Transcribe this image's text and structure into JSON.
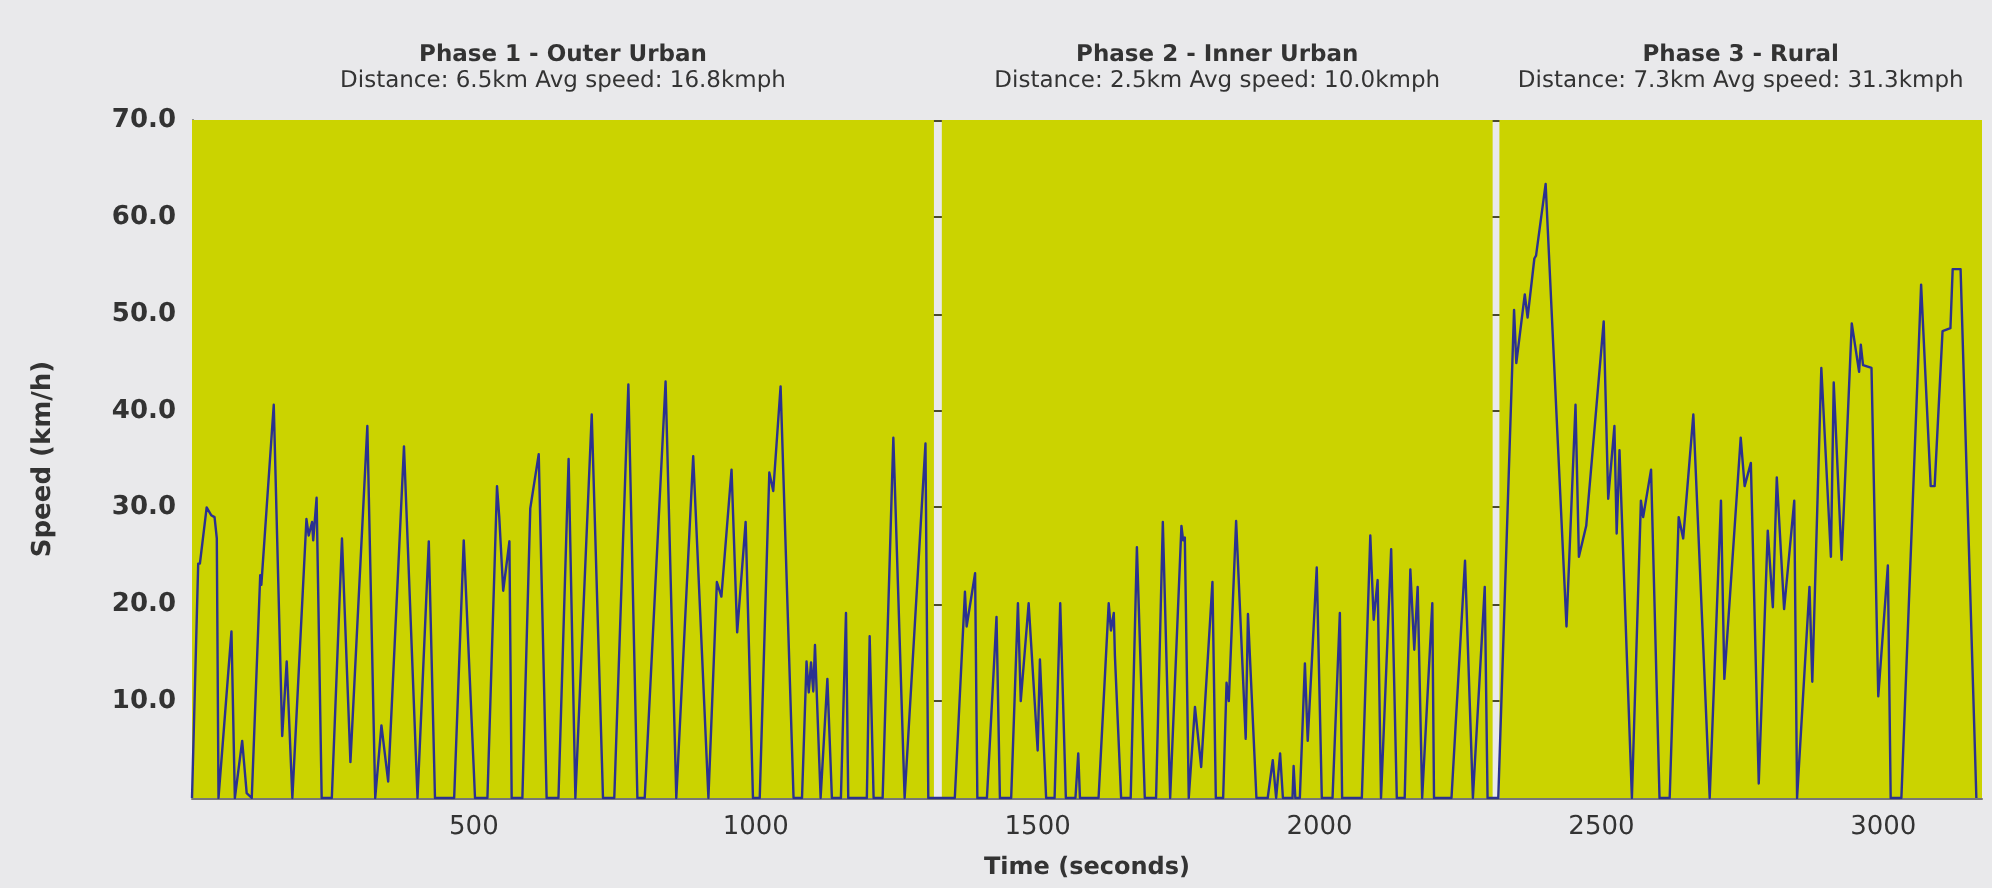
{
  "chart_data": {
    "type": "line",
    "xlabel": "Time (seconds)",
    "ylabel": "Speed (km/h)",
    "xlim": [
      0,
      3175
    ],
    "xticks": [
      500,
      1000,
      1500,
      2000,
      2500,
      3000
    ],
    "ylim": [
      0,
      70
    ],
    "yticks": [
      {
        "value": 10,
        "label": "10.0"
      },
      {
        "value": 20,
        "label": "20.0"
      },
      {
        "value": 30,
        "label": "30.0"
      },
      {
        "value": 40,
        "label": "40.0"
      },
      {
        "value": 50,
        "label": "50.0"
      },
      {
        "value": 60,
        "label": "60.0"
      },
      {
        "value": 70,
        "label": "70.0"
      }
    ],
    "grid": "y",
    "bands": [
      {
        "axis": "x",
        "from": 0,
        "to": 1316,
        "label": "Phase 1 - Outer Urban\nDistance: 6.5km Avg speed: 16.8kmph",
        "color": "#cbd300"
      },
      {
        "axis": "x",
        "from": 1330,
        "to": 2307,
        "label": "Phase 2 - Inner Urban\nDistance: 2.5km Avg speed: 10.0kmph",
        "color": "#cbd300"
      },
      {
        "axis": "x",
        "from": 2319,
        "to": 3175,
        "label": "Phase 3 - Rural\nDistance: 7.3km Avg speed: 31.3kmph",
        "color": "#cbd300"
      }
    ],
    "series": [
      {
        "color": "#2b3190",
        "x": [
          0,
          11,
          14,
          26,
          34,
          40,
          44,
          47,
          70,
          76,
          89,
          97,
          106,
          121,
          123,
          145,
          160,
          168,
          178,
          203,
          207,
          213,
          215,
          221,
          230,
          248,
          266,
          281,
          311,
          325,
          336,
          348,
          376,
          400,
          420,
          431,
          465,
          482,
          502,
          524,
          541,
          545,
          552,
          563,
          567,
          586,
          600,
          615,
          629,
          650,
          668,
          680,
          709,
          729,
          749,
          774,
          790,
          803,
          840,
          859,
          889,
          916,
          931,
          939,
          957,
          967,
          982,
          995,
          1007,
          1024,
          1031,
          1044,
          1067,
          1082,
          1090,
          1094,
          1098,
          1102,
          1105,
          1115,
          1127,
          1135,
          1151,
          1160,
          1164,
          1197,
          1202,
          1209,
          1225,
          1244,
          1264,
          1301,
          1306,
          1353,
          1371,
          1374,
          1389,
          1393,
          1410,
          1427,
          1433,
          1453,
          1465,
          1470,
          1484,
          1500,
          1504,
          1515,
          1530,
          1540,
          1550,
          1567,
          1572,
          1575,
          1608,
          1626,
          1630,
          1635,
          1637,
          1648,
          1665,
          1676,
          1690,
          1710,
          1722,
          1735,
          1755,
          1758,
          1761,
          1768,
          1779,
          1790,
          1810,
          1816,
          1829,
          1835,
          1839,
          1852,
          1869,
          1873,
          1888,
          1908,
          1917,
          1923,
          1930,
          1935,
          1952,
          1954,
          1957,
          1965,
          1974,
          1979,
          1995,
          2004,
          2023,
          2036,
          2040,
          2075,
          2090,
          2096,
          2103,
          2109,
          2127,
          2137,
          2151,
          2161,
          2168,
          2174,
          2182,
          2200,
          2203,
          2234,
          2258,
          2272,
          2293,
          2298,
          2317,
          2345,
          2349,
          2364,
          2369,
          2381,
          2384,
          2401,
          2438,
          2454,
          2460,
          2473,
          2504,
          2512,
          2523,
          2527,
          2532,
          2554,
          2570,
          2574,
          2588,
          2603,
          2621,
          2637,
          2645,
          2663,
          2692,
          2712,
          2718,
          2747,
          2754,
          2765,
          2779,
          2795,
          2804,
          2811,
          2824,
          2842,
          2847,
          2869,
          2874,
          2890,
          2907,
          2912,
          2926,
          2944,
          2957,
          2960,
          2964,
          2979,
          2991,
          3008,
          3013,
          3032,
          3067,
          3084,
          3091,
          3105,
          3119,
          3123,
          3137,
          3165
        ],
        "values": [
          0,
          24.2,
          24.2,
          30,
          29.2,
          29,
          26.8,
          0,
          17.2,
          0,
          5.9,
          0.5,
          0,
          23,
          22,
          40.6,
          6.4,
          14.1,
          0,
          28.8,
          27.1,
          28.5,
          26.6,
          31,
          0,
          0,
          26.8,
          3.7,
          38.4,
          0,
          7.5,
          1.7,
          36.3,
          0,
          26.5,
          0,
          0,
          26.6,
          0,
          0,
          32.2,
          29,
          21.4,
          26.5,
          0,
          0,
          29.9,
          35.5,
          0,
          0,
          35,
          0,
          39.6,
          0,
          0,
          42.7,
          0,
          0,
          43,
          0,
          35.3,
          0,
          22.3,
          20.8,
          33.9,
          17.1,
          28.5,
          0,
          0,
          33.6,
          31.7,
          42.5,
          0,
          0,
          14.1,
          10.9,
          14,
          11,
          15.8,
          0,
          12.3,
          0,
          0,
          19.1,
          0,
          0,
          16.7,
          0,
          0,
          37.2,
          0,
          36.6,
          0,
          0,
          21.3,
          17.7,
          23.2,
          0,
          0,
          18.7,
          0,
          0,
          20.1,
          10,
          20.1,
          4.9,
          14.3,
          0,
          0,
          20.1,
          0,
          0,
          4.6,
          0,
          0,
          20.1,
          17.3,
          19.1,
          14.7,
          0,
          0,
          25.9,
          0,
          0,
          28.5,
          0,
          28.1,
          26.6,
          26.9,
          0,
          9.4,
          3.2,
          22.3,
          0,
          0,
          11.9,
          10,
          28.6,
          6.1,
          19,
          0,
          0,
          3.9,
          0,
          4.6,
          0,
          0,
          3.3,
          0,
          0,
          13.9,
          5.9,
          23.8,
          0,
          0,
          19.1,
          0,
          0,
          27.1,
          18.4,
          22.5,
          0,
          25.7,
          0,
          0,
          23.6,
          15.3,
          21.8,
          0,
          20.1,
          0,
          0,
          24.5,
          0,
          21.8,
          0,
          0,
          50.4,
          44.9,
          52,
          49.6,
          55.7,
          56,
          63.4,
          17.7,
          40.6,
          24.9,
          28.1,
          49.2,
          30.9,
          38.4,
          27.3,
          35.9,
          0,
          30.7,
          29,
          33.9,
          0,
          0,
          29,
          26.8,
          39.6,
          0,
          30.7,
          12.3,
          37.2,
          32.2,
          34.6,
          1.5,
          27.6,
          19.7,
          33.1,
          19.5,
          30.7,
          0,
          21.8,
          12,
          44.4,
          24.9,
          42.9,
          24.6,
          49,
          44,
          46.8,
          44.7,
          44.4,
          10.5,
          24,
          0,
          0,
          53,
          32.2,
          32.2,
          48.2,
          48.5,
          54.6,
          54.6,
          0
        ]
      }
    ]
  }
}
